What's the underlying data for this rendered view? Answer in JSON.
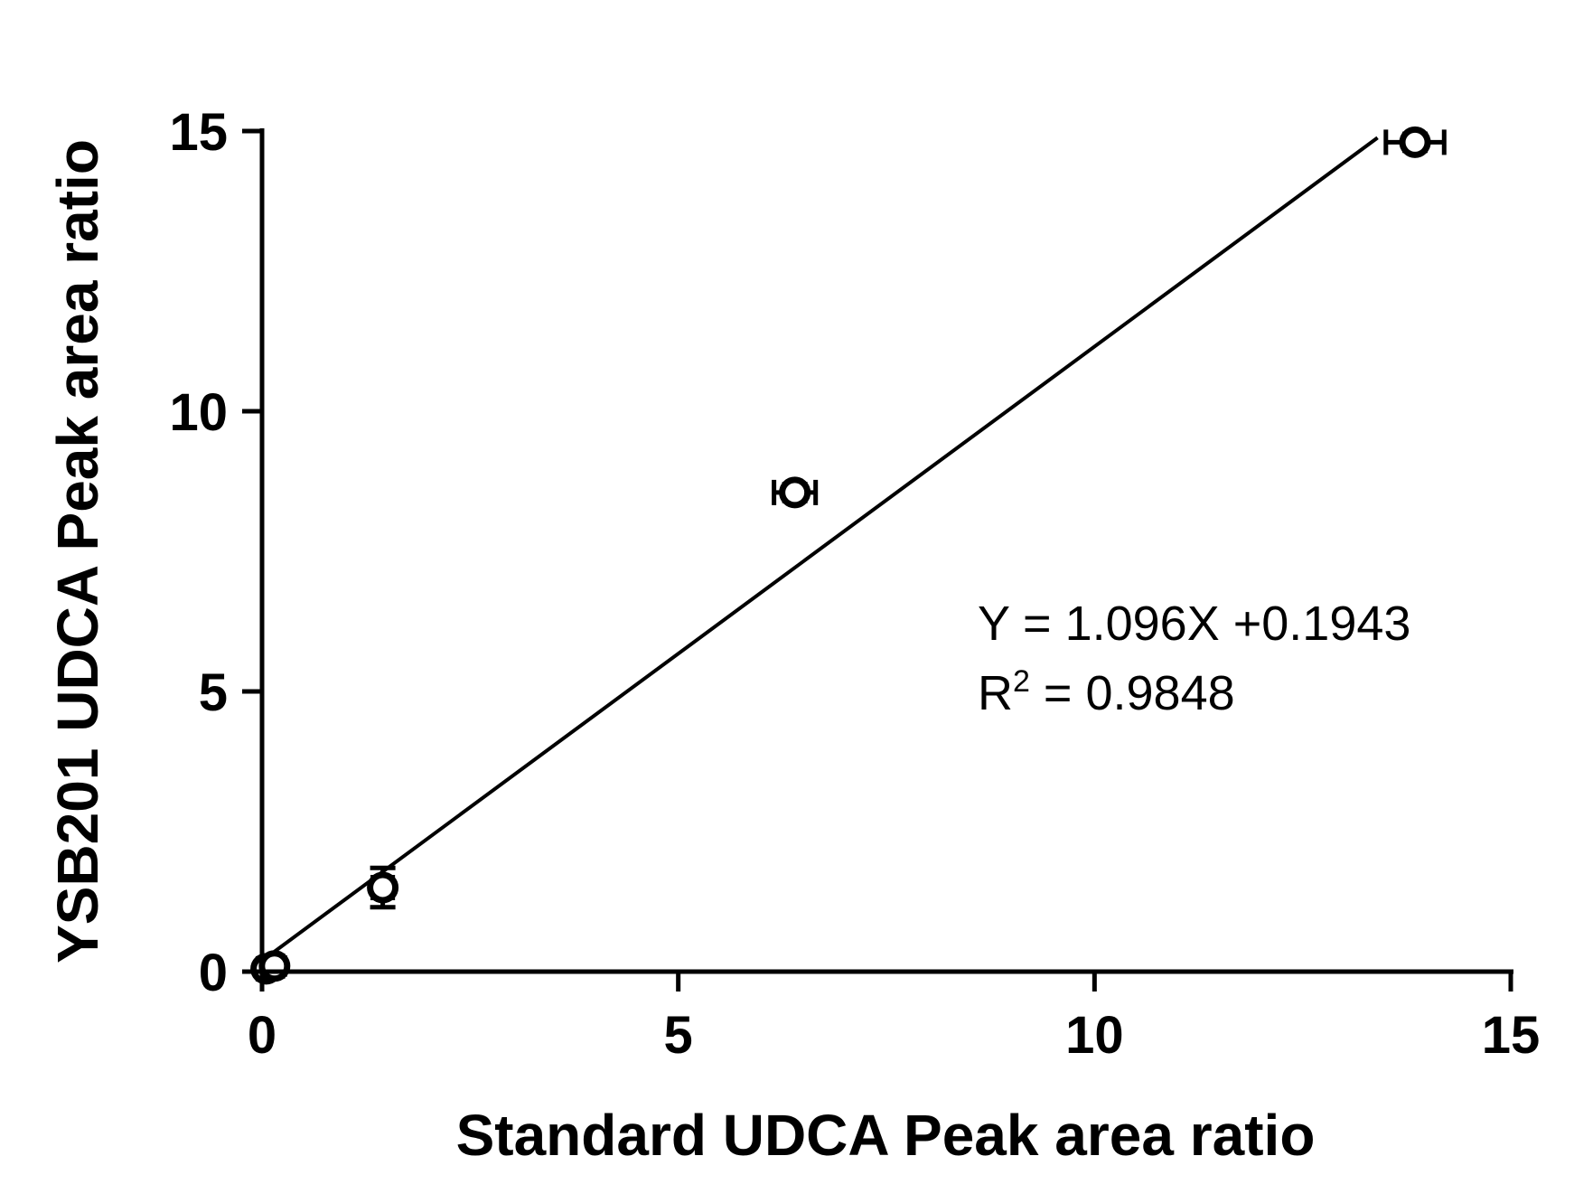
{
  "chart_data": {
    "type": "scatter",
    "title": "",
    "xlabel": "Standard UDCA Peak area ratio",
    "ylabel": "YSB201 UDCA Peak area ratio",
    "xlim": [
      0,
      15
    ],
    "ylim": [
      0,
      15
    ],
    "xticks": [
      0,
      5,
      10,
      15
    ],
    "yticks": [
      0,
      5,
      10,
      15
    ],
    "grid": false,
    "points": [
      {
        "x": 0.05,
        "y": 0.05,
        "xerr": 0.1,
        "yerr": 0.1
      },
      {
        "x": 0.15,
        "y": 0.1,
        "xerr": 0.1,
        "yerr": 0.15
      },
      {
        "x": 1.45,
        "y": 1.5,
        "xerr": 0.12,
        "yerr": 0.35
      },
      {
        "x": 6.4,
        "y": 8.55,
        "xerr": 0.25,
        "yerr": 0.15
      },
      {
        "x": 13.85,
        "y": 14.8,
        "xerr": 0.35,
        "yerr": 0.15
      }
    ],
    "fit": {
      "slope": 1.096,
      "intercept": 0.1943,
      "x_range": [
        0,
        13.4
      ]
    },
    "annotation": {
      "equation": "Y = 1.096X +0.1943",
      "r2_prefix": "R",
      "r2_sup": "2",
      "r2_value": " = 0.9848"
    }
  }
}
